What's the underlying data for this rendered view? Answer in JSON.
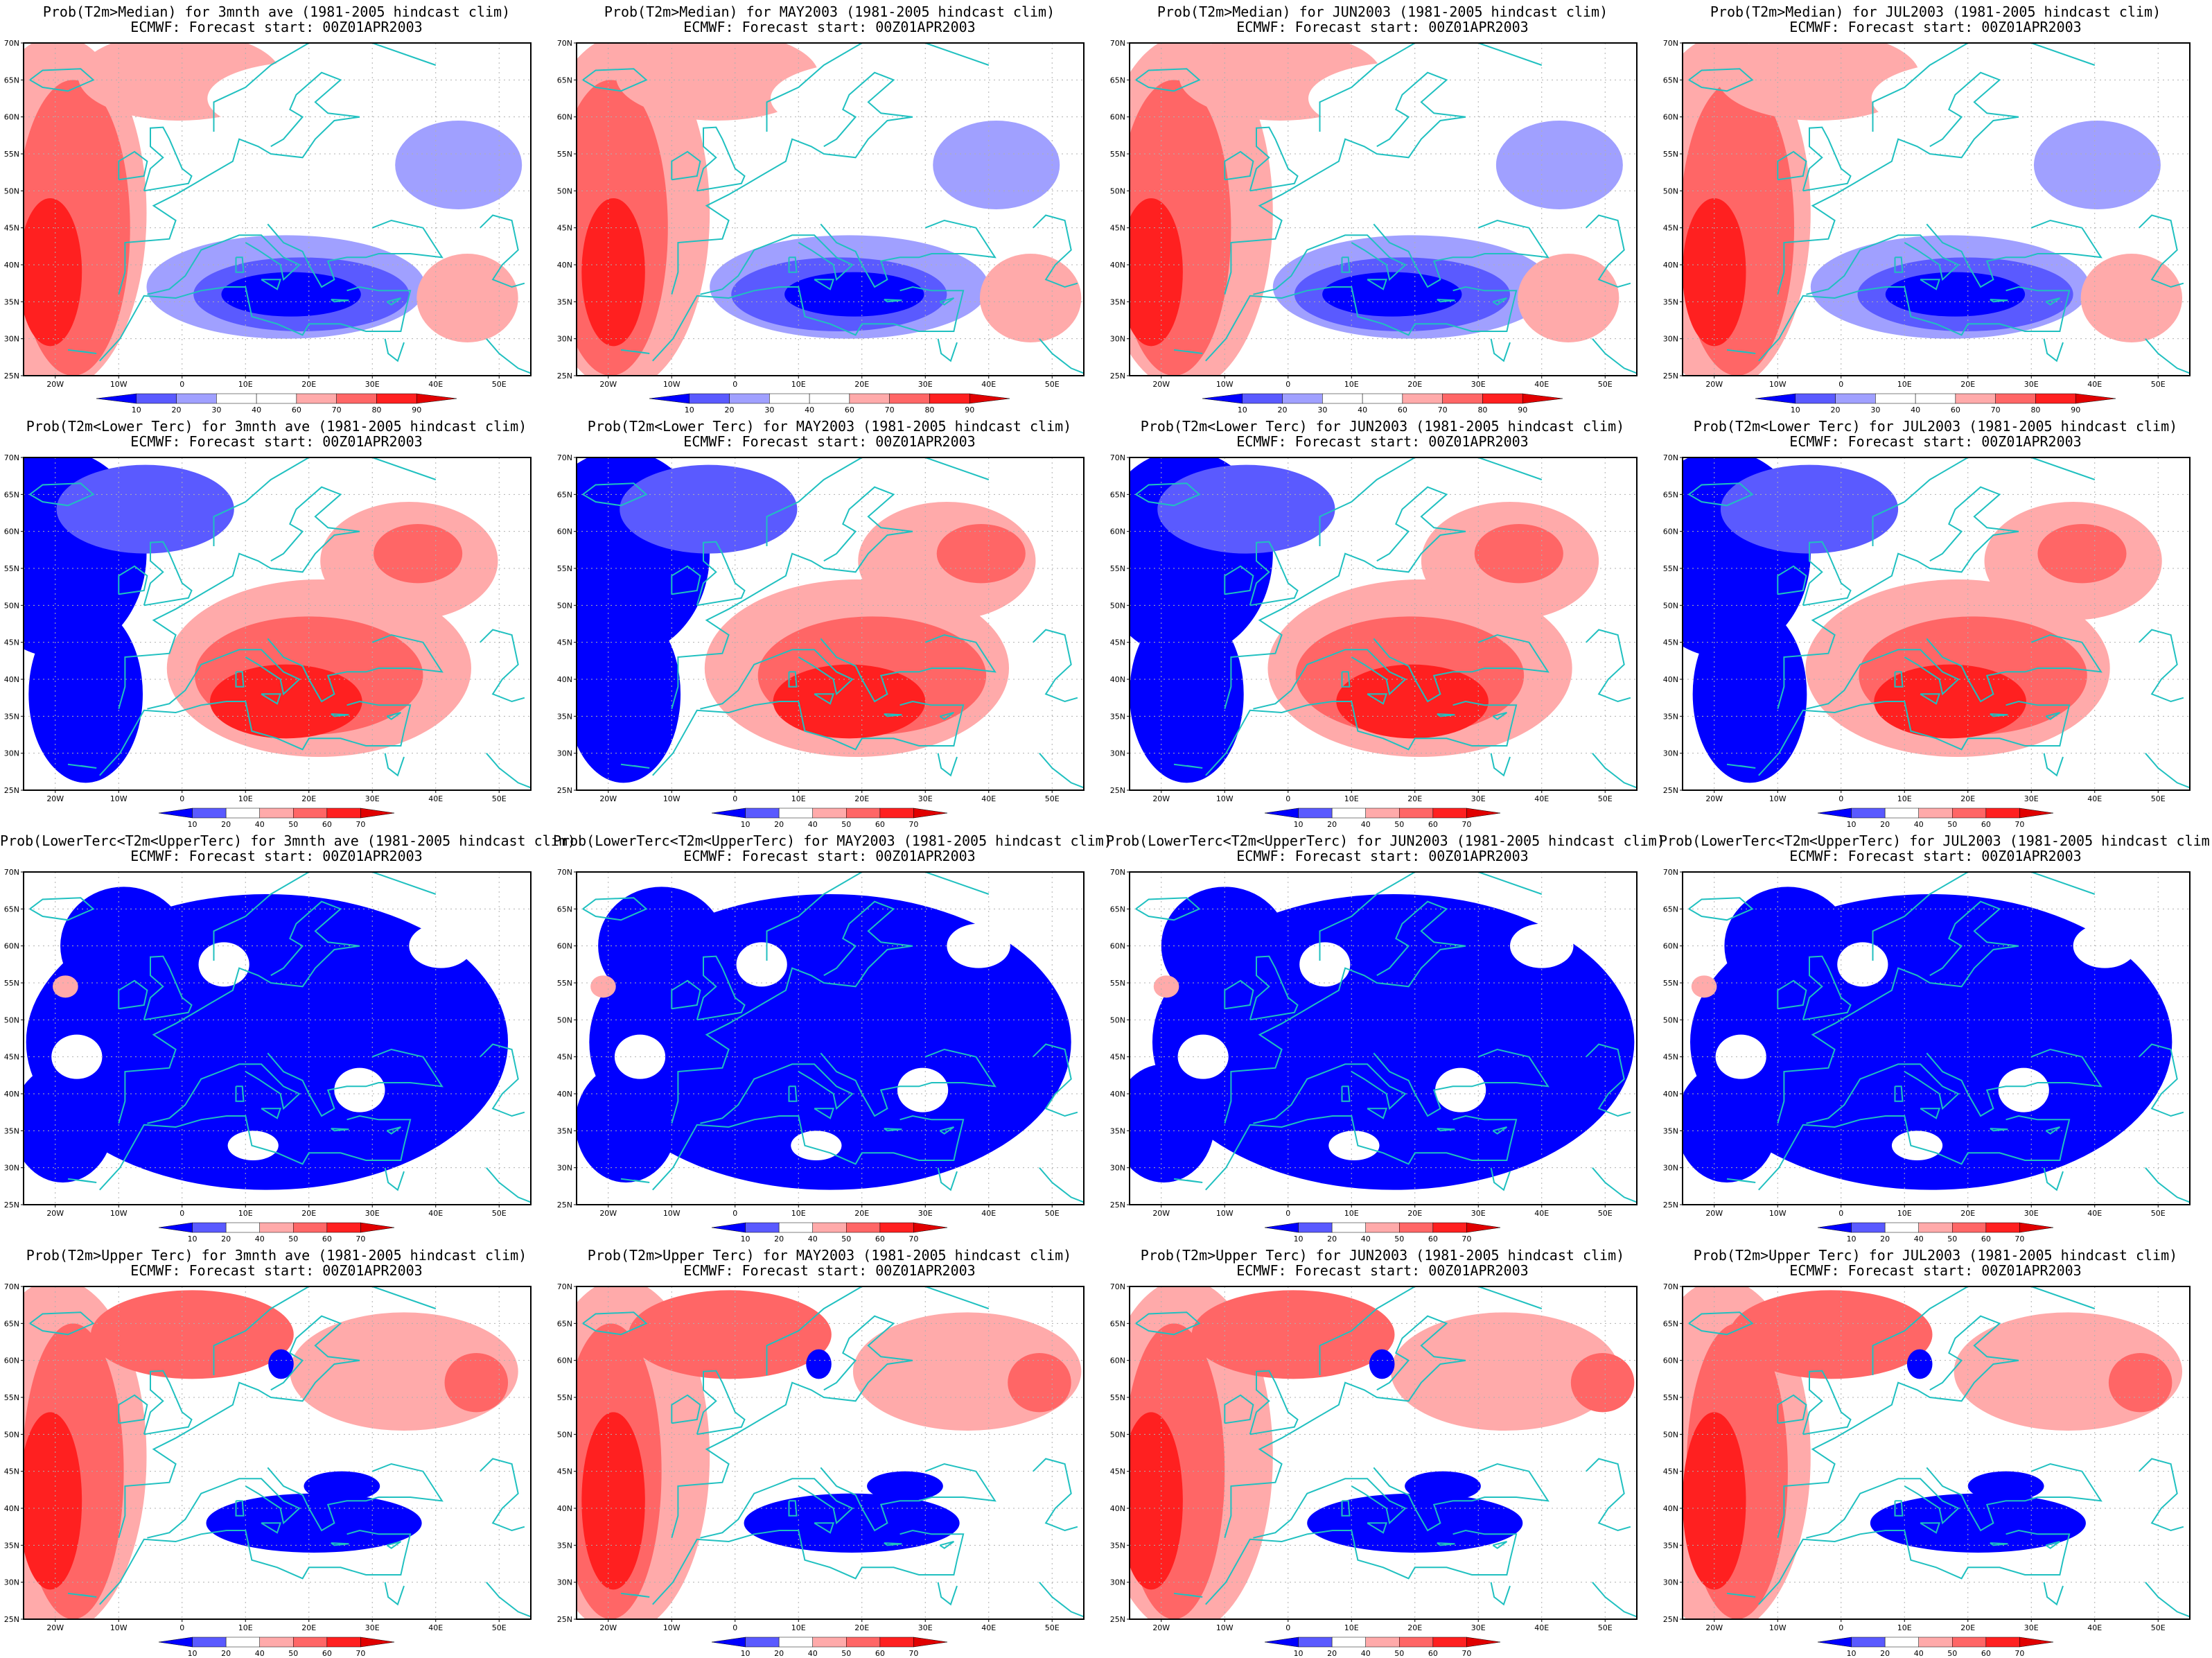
{
  "subtitle": "ECMWF: Forecast start: 00Z01APR2003",
  "lat_ticks": [
    "70N",
    "65N",
    "60N",
    "55N",
    "50N",
    "45N",
    "40N",
    "35N",
    "30N",
    "25N"
  ],
  "lon_ticks": [
    "20W",
    "10W",
    "0",
    "10E",
    "20E",
    "30E",
    "40E",
    "50E"
  ],
  "colors": {
    "blue_dark": "#0000ff",
    "blue_mid": "#5a5aff",
    "blue_light": "#a0a0ff",
    "white": "#ffffff",
    "red_light": "#ffaaaa",
    "red_mid": "#ff6666",
    "red_strong": "#ff2020",
    "red_dark": "#e00000",
    "coast": "#20c0c0"
  },
  "colorbars": {
    "median": [
      "10",
      "20",
      "30",
      "40",
      "60",
      "70",
      "80",
      "90"
    ],
    "tercile": [
      "10",
      "20",
      "40",
      "50",
      "60",
      "70"
    ]
  },
  "rows": [
    {
      "type": "median",
      "titles": [
        "Prob(T2m>Median) for 3mnth ave (1981-2005 hindcast clim)",
        "Prob(T2m>Median) for MAY2003 (1981-2005 hindcast clim)",
        "Prob(T2m>Median) for JUN2003 (1981-2005 hindcast clim)",
        "Prob(T2m>Median) for JUL2003 (1981-2005 hindcast clim)"
      ]
    },
    {
      "type": "lower",
      "titles": [
        "Prob(T2m<Lower Terc) for 3mnth ave (1981-2005 hindcast clim)",
        "Prob(T2m<Lower Terc) for MAY2003 (1981-2005 hindcast clim)",
        "Prob(T2m<Lower Terc) for JUN2003 (1981-2005 hindcast clim)",
        "Prob(T2m<Lower Terc) for JUL2003 (1981-2005 hindcast clim)"
      ]
    },
    {
      "type": "middle",
      "titles": [
        "Prob(LowerTerc<T2m<UpperTerc) for 3mnth ave (1981-2005 hindcast clim)",
        "Prob(LowerTerc<T2m<UpperTerc) for MAY2003 (1981-2005 hindcast clim)",
        "Prob(LowerTerc<T2m<UpperTerc) for JUN2003 (1981-2005 hindcast clim)",
        "Prob(LowerTerc<T2m<UpperTerc) for JUL2003 (1981-2005 hindcast clim)"
      ]
    },
    {
      "type": "upper",
      "titles": [
        "Prob(T2m>Upper Terc) for 3mnth ave (1981-2005 hindcast clim)",
        "Prob(T2m>Upper Terc) for MAY2003 (1981-2005 hindcast clim)",
        "Prob(T2m>Upper Terc) for JUN2003 (1981-2005 hindcast clim)",
        "Prob(T2m>Upper Terc) for JUL2003 (1981-2005 hindcast clim)"
      ]
    }
  ]
}
